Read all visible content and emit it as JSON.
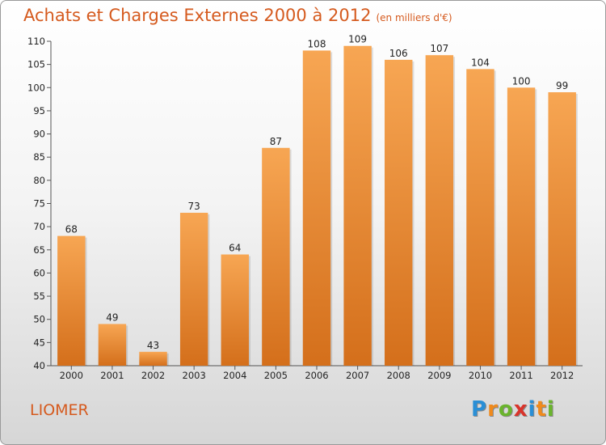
{
  "header": {
    "title": "Achats et Charges Externes 2000 à 2012",
    "subtitle": "(en milliers d'€)"
  },
  "commune": "LIOMER",
  "logo": {
    "letters": [
      "P",
      "r",
      "o",
      "x",
      "i",
      "t",
      "i"
    ],
    "colors": [
      "#2a8fd6",
      "#f08a1c",
      "#6ab42d",
      "#d9342b",
      "#2a8fd6",
      "#f08a1c",
      "#6ab42d"
    ]
  },
  "colors": {
    "bar_top": "#f7a653",
    "bar_bottom": "#d46f1b",
    "title": "#d55a1e"
  },
  "chart_data": {
    "type": "bar",
    "title": "Achats et Charges Externes 2000 à 2012",
    "subtitle": "(en milliers d'€)",
    "categories": [
      "2000",
      "2001",
      "2002",
      "2003",
      "2004",
      "2005",
      "2006",
      "2007",
      "2008",
      "2009",
      "2010",
      "2011",
      "2012"
    ],
    "values": [
      68,
      49,
      43,
      73,
      64,
      87,
      108,
      109,
      106,
      107,
      104,
      100,
      99
    ],
    "ylim": [
      40,
      110
    ],
    "yticks": [
      40,
      45,
      50,
      55,
      60,
      65,
      70,
      75,
      80,
      85,
      90,
      95,
      100,
      105,
      110
    ],
    "grid": false,
    "legend": "none"
  }
}
